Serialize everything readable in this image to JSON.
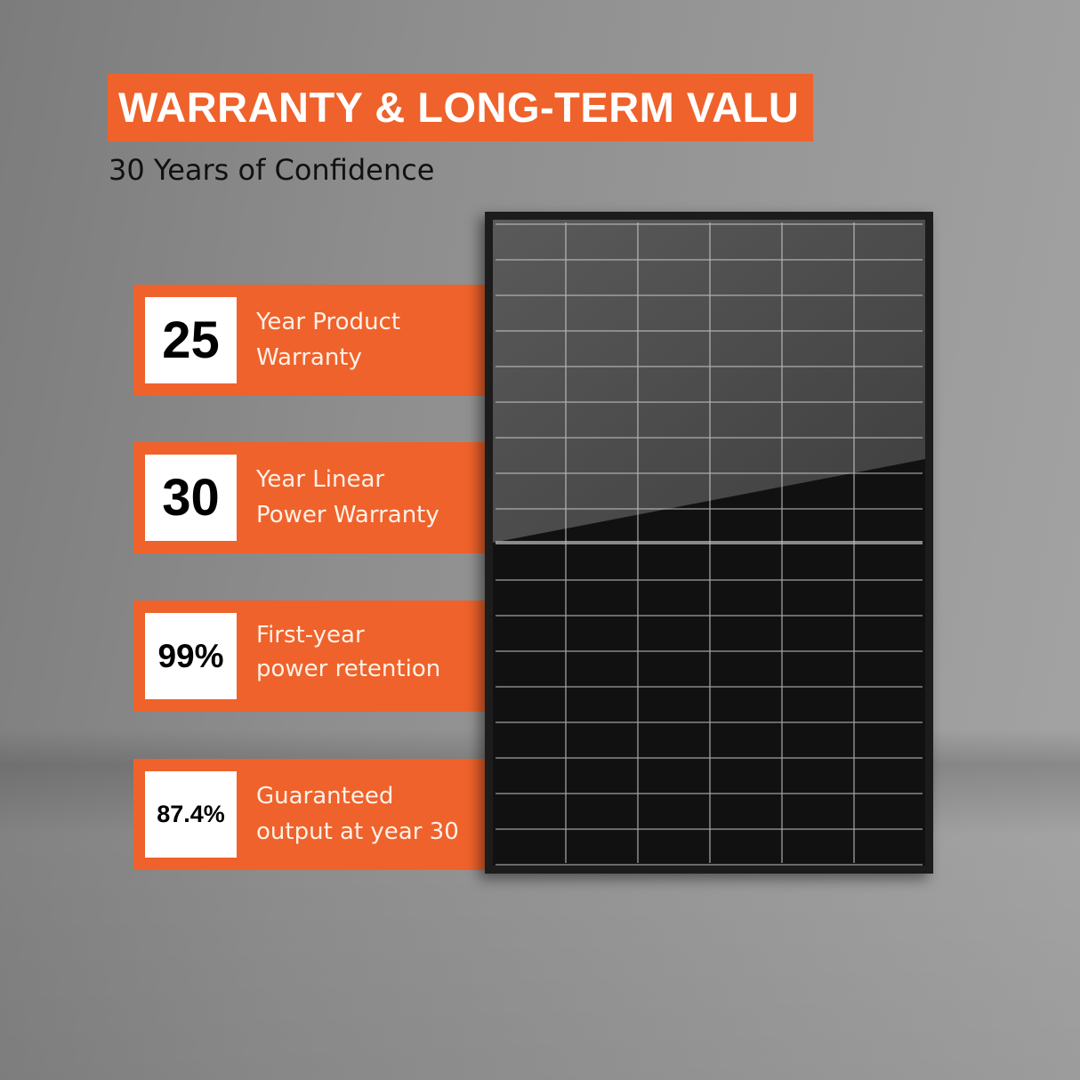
{
  "header": {
    "title": "WARRANTY & LONG-TERM VALU",
    "subtitle": "30 Years of Confidence"
  },
  "features": [
    {
      "value": "25",
      "line1": "Year Product",
      "line2": "Warranty"
    },
    {
      "value": "30",
      "line1": "Year Linear",
      "line2": "Power Warranty"
    },
    {
      "value": "99%",
      "line1": "First-year",
      "line2": "power retention"
    },
    {
      "value": "87.4%",
      "line1": "Guaranteed",
      "line2": "output at year 30"
    }
  ],
  "colors": {
    "accent": "#ef622b",
    "panel": "#1c1c1c"
  },
  "image": {
    "subject": "black-solar-panel"
  }
}
